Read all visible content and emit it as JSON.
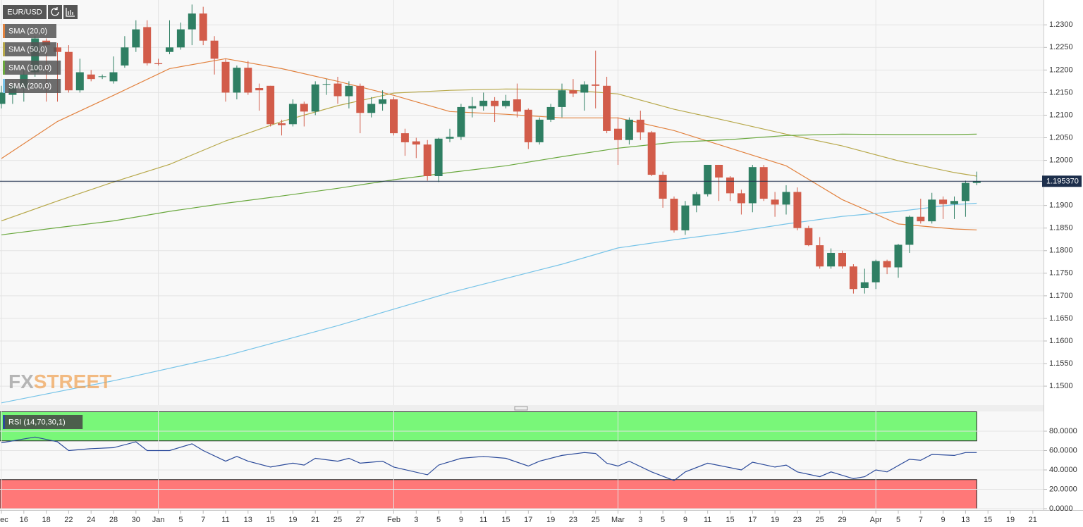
{
  "chart_data": [
    {
      "type": "candlestick",
      "title": "EUR/USD",
      "categories": [
        "Dec",
        null,
        "16",
        null,
        "18",
        null,
        "22",
        null,
        "24",
        null,
        "28",
        null,
        "30",
        null,
        "Jan",
        null,
        "5",
        null,
        "7",
        null,
        "11",
        null,
        "13",
        null,
        "15",
        null,
        "19",
        null,
        "21",
        null,
        "25",
        null,
        "27",
        null,
        null,
        "Feb",
        null,
        "3",
        null,
        "5",
        null,
        "9",
        null,
        "11",
        null,
        "15",
        null,
        "17",
        null,
        "19",
        null,
        "23",
        null,
        "25",
        null,
        "Mar",
        null,
        "3",
        null,
        "5",
        null,
        "9",
        null,
        "11",
        null,
        "15",
        null,
        "17",
        null,
        "19",
        null,
        "23",
        null,
        "25",
        null,
        "29",
        null,
        null,
        "Apr",
        null,
        "5",
        null,
        "7",
        null,
        "9",
        null,
        "13",
        null,
        "15",
        null,
        "19",
        null,
        "21"
      ],
      "open": [
        1.2125,
        1.2145,
        1.216,
        1.2195,
        1.2265,
        1.225,
        1.224,
        1.2155,
        1.219,
        1.2185,
        1.2175,
        1.221,
        1.225,
        1.2295,
        1.2215,
        1.224,
        1.225,
        1.229,
        1.2325,
        1.2265,
        1.2218,
        1.215,
        1.2205,
        1.216,
        1.2165,
        1.2082,
        1.208,
        1.2125,
        1.2108,
        1.2168,
        1.217,
        1.2142,
        1.2165,
        1.2105,
        1.2125,
        1.2135,
        1.206,
        1.2042,
        1.2035,
        1.1965,
        1.2048,
        1.2052,
        1.2115,
        1.212,
        1.2132,
        1.212,
        1.2135,
        1.2112,
        1.204,
        1.209,
        1.2118,
        1.2155,
        1.215,
        1.2168,
        1.2165,
        1.207,
        1.2045,
        1.209,
        1.2062,
        1.1968,
        1.1915,
        1.1845,
        1.19,
        1.1925,
        1.199,
        1.1962,
        1.1927,
        1.1905,
        1.1985,
        1.1913,
        1.1902,
        1.193,
        1.185,
        1.1812,
        1.1765,
        1.1795,
        1.1765,
        1.1717,
        1.173,
        1.1777,
        1.1763,
        1.1813,
        1.1875,
        1.1865,
        1.1913,
        1.1903,
        1.191,
        1.195,
        null,
        null,
        null,
        null,
        null
      ],
      "high": [
        1.2165,
        1.2175,
        1.22,
        1.2275,
        1.227,
        1.226,
        1.2255,
        1.2225,
        1.22,
        1.219,
        1.223,
        1.2275,
        1.231,
        1.231,
        1.2225,
        1.231,
        1.2305,
        1.2345,
        1.234,
        1.2275,
        1.2225,
        1.221,
        1.222,
        1.217,
        1.2165,
        1.209,
        1.2135,
        1.213,
        1.2175,
        1.218,
        1.2185,
        1.2175,
        1.217,
        1.214,
        1.2155,
        1.214,
        1.207,
        1.205,
        1.2045,
        1.205,
        1.207,
        1.2125,
        1.214,
        1.215,
        1.214,
        1.2145,
        1.217,
        1.2115,
        1.2095,
        1.2125,
        1.217,
        1.218,
        1.2175,
        1.2243,
        1.2185,
        1.2095,
        1.2095,
        1.211,
        1.2065,
        1.1975,
        1.192,
        1.191,
        1.193,
        1.199,
        1.199,
        1.1965,
        1.1935,
        1.199,
        1.199,
        1.193,
        1.1945,
        1.194,
        1.1855,
        1.183,
        1.1805,
        1.18,
        1.177,
        1.176,
        1.178,
        1.178,
        1.1815,
        1.1878,
        1.1915,
        1.1928,
        1.192,
        1.192,
        1.1955,
        1.1975,
        null,
        null,
        null,
        null,
        null
      ],
      "low": [
        1.2115,
        1.2125,
        1.213,
        1.2185,
        1.213,
        1.213,
        1.215,
        1.215,
        1.2175,
        1.218,
        1.217,
        1.2205,
        1.224,
        1.221,
        1.221,
        1.2235,
        1.2245,
        1.2255,
        1.2255,
        1.219,
        1.213,
        1.2135,
        1.2145,
        1.211,
        1.2075,
        1.2055,
        1.2075,
        1.2075,
        1.21,
        1.2145,
        1.2125,
        1.2115,
        1.206,
        1.2095,
        1.211,
        1.2055,
        1.201,
        1.2005,
        1.1955,
        1.1952,
        1.204,
        1.2045,
        1.2095,
        1.211,
        1.2085,
        1.2115,
        1.2095,
        1.2025,
        1.2035,
        1.2085,
        1.2095,
        1.214,
        1.211,
        1.2115,
        1.206,
        1.199,
        1.2035,
        1.2045,
        1.1965,
        1.1895,
        1.184,
        1.1835,
        1.1885,
        1.192,
        1.191,
        1.191,
        1.188,
        1.1885,
        1.191,
        1.1875,
        1.188,
        1.1845,
        1.181,
        1.176,
        1.176,
        1.176,
        1.1705,
        1.1705,
        1.1715,
        1.1748,
        1.174,
        1.1795,
        1.186,
        1.186,
        1.187,
        1.187,
        1.1875,
        1.1945,
        null,
        null,
        null,
        null,
        null
      ],
      "close": [
        1.215,
        1.2165,
        1.219,
        1.227,
        1.2255,
        1.224,
        1.2155,
        1.2195,
        1.218,
        1.2186,
        1.2195,
        1.225,
        1.229,
        1.2215,
        1.2213,
        1.225,
        1.229,
        1.2325,
        1.2265,
        1.2225,
        1.215,
        1.2205,
        1.215,
        1.2155,
        1.208,
        1.2078,
        1.2125,
        1.2108,
        1.2168,
        1.2169,
        1.2142,
        1.2165,
        1.2105,
        1.2125,
        1.2135,
        1.206,
        1.204,
        1.2035,
        1.1965,
        1.2048,
        1.2052,
        1.2118,
        1.212,
        1.2132,
        1.212,
        1.2132,
        1.2108,
        1.204,
        1.209,
        1.2118,
        1.2155,
        1.2148,
        1.2168,
        1.2165,
        1.2065,
        1.2045,
        1.209,
        1.2062,
        1.1968,
        1.1915,
        1.1845,
        1.19,
        1.1925,
        1.199,
        1.1962,
        1.1927,
        1.1905,
        1.1985,
        1.1915,
        1.1902,
        1.193,
        1.185,
        1.1812,
        1.1765,
        1.1795,
        1.1765,
        1.1715,
        1.173,
        1.1777,
        1.1763,
        1.1813,
        1.1875,
        1.1865,
        1.1913,
        1.1903,
        1.191,
        1.195,
        1.1954,
        null,
        null,
        null,
        null,
        null
      ],
      "up_color": "#2f7f63",
      "down_color": "#d25c4a",
      "series": [
        {
          "name": "SMA (20,0)",
          "color": "#e2823f",
          "x": [
            0,
            5,
            10,
            15,
            20,
            25,
            30,
            35,
            40,
            45,
            50,
            55,
            60,
            65,
            70,
            75,
            80,
            85,
            87
          ],
          "values": [
            1.2004,
            1.2086,
            1.2144,
            1.2203,
            1.2225,
            1.2203,
            1.2175,
            1.2144,
            1.2108,
            1.2102,
            1.2094,
            1.2094,
            1.2066,
            1.2027,
            1.1988,
            1.1913,
            1.1859,
            1.1848,
            1.1846
          ]
        },
        {
          "name": "SMA (50,0)",
          "color": "#b7a84a",
          "x": [
            0,
            5,
            10,
            15,
            20,
            25,
            30,
            35,
            40,
            45,
            50,
            55,
            60,
            65,
            70,
            75,
            80,
            85,
            87
          ],
          "values": [
            1.1866,
            1.191,
            1.1952,
            1.1991,
            1.2043,
            1.2086,
            1.2121,
            1.2149,
            1.2155,
            1.2158,
            1.2157,
            1.2147,
            1.2113,
            1.2086,
            1.2058,
            1.2032,
            1.1999,
            1.1973,
            1.1965
          ]
        },
        {
          "name": "SMA (100,0)",
          "color": "#6aa83e",
          "x": [
            0,
            5,
            10,
            15,
            20,
            25,
            30,
            35,
            40,
            45,
            50,
            55,
            60,
            65,
            70,
            75,
            80,
            85,
            87
          ],
          "values": [
            1.1835,
            1.1851,
            1.1866,
            1.1887,
            1.1905,
            1.1921,
            1.1938,
            1.1957,
            1.1973,
            1.1988,
            1.2008,
            1.2027,
            1.204,
            1.2046,
            1.2055,
            1.2058,
            1.2057,
            1.2057,
            1.2058
          ]
        },
        {
          "name": "SMA (200,0)",
          "color": "#78c4e8",
          "x": [
            0,
            10,
            20,
            30,
            40,
            50,
            55,
            60,
            65,
            70,
            75,
            80,
            85,
            87
          ],
          "values": [
            1.1463,
            1.1512,
            1.1567,
            1.1634,
            1.1707,
            1.177,
            1.1806,
            1.1824,
            1.184,
            1.1859,
            1.1876,
            1.1887,
            1.1902,
            1.1905
          ]
        }
      ],
      "last_price": {
        "value": 1.19537,
        "label": "1.195370"
      },
      "ylim": [
        1.1458,
        1.2355
      ],
      "yticks": [
        {
          "value": 1.15,
          "label": "1.1500"
        },
        {
          "value": 1.155,
          "label": "1.1550"
        },
        {
          "value": 1.16,
          "label": "1.1600"
        },
        {
          "value": 1.165,
          "label": "1.1650"
        },
        {
          "value": 1.17,
          "label": "1.1700"
        },
        {
          "value": 1.175,
          "label": "1.1750"
        },
        {
          "value": 1.18,
          "label": "1.1800"
        },
        {
          "value": 1.185,
          "label": "1.1850"
        },
        {
          "value": 1.19,
          "label": "1.1900"
        },
        {
          "value": 1.195,
          "label": "1.1950"
        },
        {
          "value": 1.2,
          "label": "1.2000"
        },
        {
          "value": 1.205,
          "label": "1.2050"
        },
        {
          "value": 1.21,
          "label": "1.2100"
        },
        {
          "value": 1.215,
          "label": "1.2150"
        },
        {
          "value": 1.22,
          "label": "1.2200"
        },
        {
          "value": 1.225,
          "label": "1.2250"
        },
        {
          "value": 1.23,
          "label": "1.2300"
        }
      ],
      "grid": true,
      "watermark": [
        "FX",
        "STREET"
      ]
    },
    {
      "type": "line",
      "series": [
        {
          "name": "RSI (14,70,30,1)",
          "color": "#2b4a9a",
          "x": [
            0,
            3,
            5,
            6,
            8,
            10,
            12,
            13,
            15,
            17,
            18,
            20,
            21,
            22,
            24,
            26,
            27,
            28,
            30,
            31,
            32,
            34,
            35,
            38,
            39,
            41,
            43,
            45,
            47,
            48,
            50,
            52,
            53,
            54,
            55,
            56,
            58,
            60,
            61,
            63,
            66,
            67,
            69,
            70,
            71,
            73,
            74,
            76,
            77,
            78,
            79,
            81,
            82,
            83,
            85,
            86,
            87
          ],
          "values": [
            68,
            74,
            69,
            60,
            62,
            63,
            69,
            60,
            60,
            67,
            60,
            49,
            54,
            49,
            43,
            47,
            45,
            52,
            49,
            52,
            47,
            49,
            43,
            35,
            45,
            52,
            54,
            52,
            44,
            49,
            55,
            58,
            57,
            47,
            44,
            49,
            38,
            29,
            38,
            47,
            40,
            48,
            43,
            45,
            38,
            33,
            38,
            31,
            33,
            40,
            38,
            51,
            50,
            56,
            55,
            58,
            58
          ]
        }
      ],
      "zones": [
        {
          "from": 70,
          "to": 100,
          "color": "#79f779"
        },
        {
          "from": 0,
          "to": 30,
          "color": "#ff7878"
        }
      ],
      "ylim": [
        0,
        100
      ],
      "yticks": [
        {
          "value": 0,
          "label": "0.0000"
        },
        {
          "value": 20,
          "label": "20.0000"
        },
        {
          "value": 40,
          "label": "40.0000"
        },
        {
          "value": 60,
          "label": "60.0000"
        },
        {
          "value": 80,
          "label": "80.0000"
        }
      ],
      "grid": true
    }
  ]
}
